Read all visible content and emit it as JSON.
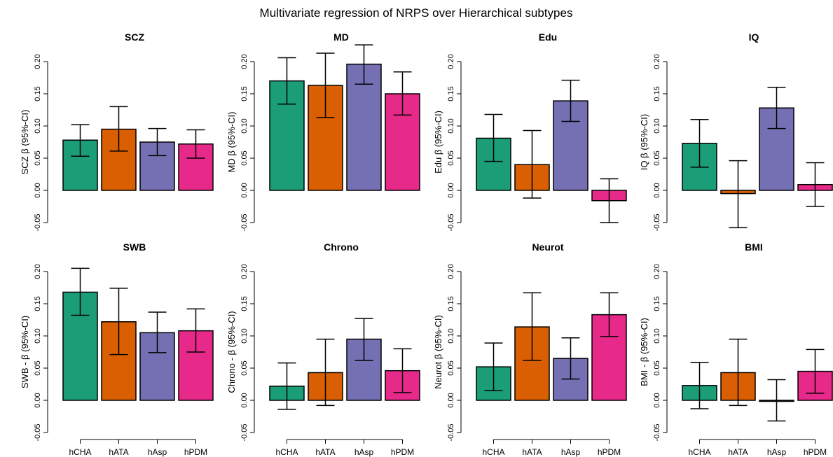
{
  "figure_title": "Multivariate regression of NRPS over Hierarchical subtypes",
  "colors": {
    "hCHA": "#1b9e77",
    "hATA": "#d95f02",
    "hAsp": "#7570b3",
    "hPDM": "#e7298a"
  },
  "chart_data": [
    {
      "type": "bar",
      "title": "SCZ",
      "ylabel": "SCZ β (95%-CI)",
      "categories": [
        "hCHA",
        "hATA",
        "hAsp",
        "hPDM"
      ],
      "values": [
        0.078,
        0.095,
        0.075,
        0.072
      ],
      "ci_low": [
        0.053,
        0.061,
        0.054,
        0.05
      ],
      "ci_high": [
        0.102,
        0.13,
        0.096,
        0.094
      ],
      "ylim": [
        -0.05,
        0.2
      ],
      "yticks": [
        "-0.05",
        "0.00",
        "0.05",
        "0.10",
        "0.15",
        "0.20"
      ],
      "show_xaxis": false
    },
    {
      "type": "bar",
      "title": "MD",
      "ylabel": "MD β (95%-CI)",
      "categories": [
        "hCHA",
        "hATA",
        "hAsp",
        "hPDM"
      ],
      "values": [
        0.17,
        0.163,
        0.196,
        0.15
      ],
      "ci_low": [
        0.134,
        0.113,
        0.165,
        0.117
      ],
      "ci_high": [
        0.206,
        0.213,
        0.226,
        0.184
      ],
      "ylim": [
        -0.05,
        0.2
      ],
      "yticks": [
        "-0.05",
        "0.00",
        "0.05",
        "0.10",
        "0.15",
        "0.20"
      ],
      "show_xaxis": false
    },
    {
      "type": "bar",
      "title": "Edu",
      "ylabel": "Edu β (95%-CI)",
      "categories": [
        "hCHA",
        "hATA",
        "hAsp",
        "hPDM"
      ],
      "values": [
        0.081,
        0.04,
        0.139,
        -0.016
      ],
      "ci_low": [
        0.045,
        -0.012,
        0.107,
        -0.05
      ],
      "ci_high": [
        0.118,
        0.093,
        0.171,
        0.018
      ],
      "ylim": [
        -0.05,
        0.2
      ],
      "yticks": [
        "-0.05",
        "0.00",
        "0.05",
        "0.10",
        "0.15",
        "0.20"
      ],
      "show_xaxis": false
    },
    {
      "type": "bar",
      "title": "IQ",
      "ylabel": "IQ β (95%-CI)",
      "categories": [
        "hCHA",
        "hATA",
        "hAsp",
        "hPDM"
      ],
      "values": [
        0.073,
        -0.005,
        0.128,
        0.009
      ],
      "ci_low": [
        0.036,
        -0.058,
        0.096,
        -0.025
      ],
      "ci_high": [
        0.11,
        0.046,
        0.16,
        0.043
      ],
      "ylim": [
        -0.05,
        0.2
      ],
      "yticks": [
        "-0.05",
        "0.00",
        "0.05",
        "0.10",
        "0.15",
        "0.20"
      ],
      "show_xaxis": false
    },
    {
      "type": "bar",
      "title": "SWB",
      "ylabel": "SWB - β (95%-CI)",
      "categories": [
        "hCHA",
        "hATA",
        "hAsp",
        "hPDM"
      ],
      "values": [
        0.168,
        0.122,
        0.105,
        0.108
      ],
      "ci_low": [
        0.132,
        0.071,
        0.074,
        0.075
      ],
      "ci_high": [
        0.205,
        0.174,
        0.137,
        0.142
      ],
      "ylim": [
        -0.05,
        0.2
      ],
      "yticks": [
        "-0.05",
        "0.00",
        "0.05",
        "0.10",
        "0.15",
        "0.20"
      ],
      "show_xaxis": true
    },
    {
      "type": "bar",
      "title": "Chrono",
      "ylabel": "Chrono - β (95%-CI)",
      "categories": [
        "hCHA",
        "hATA",
        "hAsp",
        "hPDM"
      ],
      "values": [
        0.022,
        0.043,
        0.095,
        0.046
      ],
      "ci_low": [
        -0.014,
        -0.008,
        0.062,
        0.012
      ],
      "ci_high": [
        0.058,
        0.095,
        0.127,
        0.08
      ],
      "ylim": [
        -0.05,
        0.2
      ],
      "yticks": [
        "-0.05",
        "0.00",
        "0.05",
        "0.10",
        "0.15",
        "0.20"
      ],
      "show_xaxis": true
    },
    {
      "type": "bar",
      "title": "Neurot",
      "ylabel": "Neurot β (95%-CI)",
      "categories": [
        "hCHA",
        "hATA",
        "hAsp",
        "hPDM"
      ],
      "values": [
        0.052,
        0.114,
        0.065,
        0.133
      ],
      "ci_low": [
        0.015,
        0.062,
        0.033,
        0.099
      ],
      "ci_high": [
        0.089,
        0.167,
        0.097,
        0.167
      ],
      "ylim": [
        -0.05,
        0.2
      ],
      "yticks": [
        "-0.05",
        "0.00",
        "0.05",
        "0.10",
        "0.15",
        "0.20"
      ],
      "show_xaxis": true
    },
    {
      "type": "bar",
      "title": "BMI",
      "ylabel": "BMI - β (95%-CI)",
      "categories": [
        "hCHA",
        "hATA",
        "hAsp",
        "hPDM"
      ],
      "values": [
        0.023,
        0.043,
        0.0,
        0.045
      ],
      "ci_low": [
        -0.013,
        -0.008,
        -0.032,
        0.011
      ],
      "ci_high": [
        0.059,
        0.095,
        0.032,
        0.079
      ],
      "ylim": [
        -0.05,
        0.2
      ],
      "yticks": [
        "-0.05",
        "0.00",
        "0.05",
        "0.10",
        "0.15",
        "0.20"
      ],
      "show_xaxis": true
    }
  ]
}
